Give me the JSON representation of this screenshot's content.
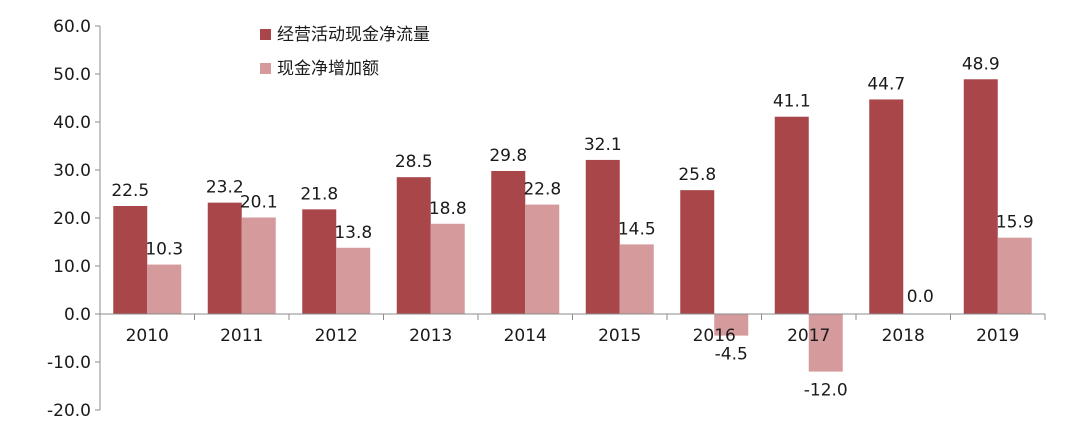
{
  "chart_data": {
    "type": "bar",
    "categories": [
      "2010",
      "2011",
      "2012",
      "2013",
      "2014",
      "2015",
      "2016",
      "2017",
      "2018",
      "2019"
    ],
    "series": [
      {
        "name": "经营活动现金净流量",
        "color": "#a8464a",
        "values": [
          22.5,
          23.2,
          21.8,
          28.5,
          29.8,
          32.1,
          25.8,
          41.1,
          44.7,
          48.9
        ],
        "labels": [
          "22.5",
          "23.2",
          "21.8",
          "28.5",
          "29.8",
          "32.1",
          "25.8",
          "41.1",
          "44.7",
          "48.9"
        ]
      },
      {
        "name": "现金净增加额",
        "color": "#d59a9c",
        "values": [
          10.3,
          20.1,
          13.8,
          18.8,
          22.8,
          14.5,
          -4.5,
          -12.0,
          0.0,
          15.9
        ],
        "labels": [
          "10.3",
          "20.1",
          "13.8",
          "18.8",
          "22.8",
          "14.5",
          "-4.5",
          "-12.0",
          "0.0",
          "15.9"
        ]
      }
    ],
    "ylim": [
      -20,
      60
    ],
    "yticks": [
      "60.0",
      "50.0",
      "40.0",
      "30.0",
      "20.0",
      "10.0",
      "0.0",
      "-10.0",
      "-20.0"
    ],
    "legend_position": "top-left",
    "grid": false,
    "title": "",
    "xlabel": "",
    "ylabel": ""
  }
}
